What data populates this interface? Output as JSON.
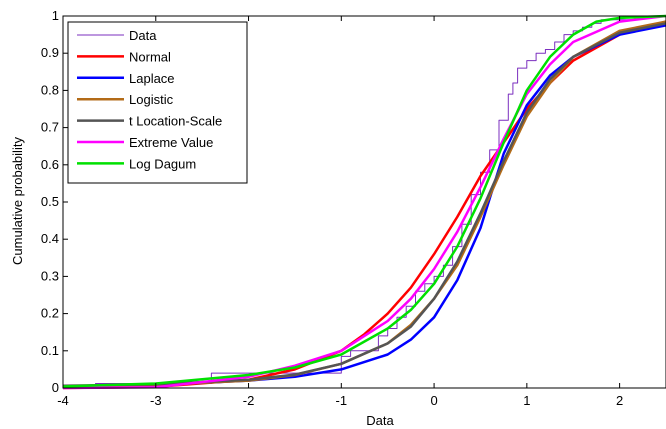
{
  "chart_data": {
    "type": "line",
    "title": "",
    "xlabel": "Data",
    "ylabel": "Cumulative probability",
    "xlim": [
      -4,
      2.5
    ],
    "ylim": [
      0,
      1
    ],
    "xticks": [
      -4,
      -3,
      -2,
      -1,
      0,
      1,
      2
    ],
    "yticks": [
      0,
      0.1,
      0.2,
      0.3,
      0.4,
      0.5,
      0.6,
      0.7,
      0.8,
      0.9,
      1
    ],
    "xtick_labels": [
      "-4",
      "-3",
      "-2",
      "-1",
      "0",
      "1",
      "2"
    ],
    "ytick_labels": [
      "0",
      "0.1",
      "0.2",
      "0.3",
      "0.4",
      "0.5",
      "0.6",
      "0.7",
      "0.8",
      "0.9",
      "1"
    ],
    "grid": false,
    "legend_position": "top-left",
    "series": [
      {
        "name": "Data",
        "color": "#7b2fbf",
        "style": "step",
        "x": [
          -4.0,
          -3.65,
          -2.4,
          -1.0,
          -0.9,
          -0.6,
          -0.5,
          -0.4,
          -0.3,
          -0.2,
          -0.1,
          0.0,
          0.1,
          0.2,
          0.3,
          0.4,
          0.5,
          0.6,
          0.7,
          0.8,
          0.85,
          0.9,
          1.0,
          1.1,
          1.2,
          1.3,
          1.4,
          1.5,
          1.6,
          1.7,
          1.8,
          2.2,
          2.5
        ],
        "y": [
          0.0,
          0.012,
          0.04,
          0.085,
          0.1,
          0.14,
          0.16,
          0.19,
          0.22,
          0.26,
          0.28,
          0.3,
          0.33,
          0.38,
          0.44,
          0.52,
          0.58,
          0.64,
          0.72,
          0.79,
          0.82,
          0.86,
          0.88,
          0.9,
          0.91,
          0.93,
          0.95,
          0.96,
          0.97,
          0.98,
          0.99,
          1.0,
          1.0
        ]
      },
      {
        "name": "Normal",
        "color": "#ff0000",
        "x": [
          -4.0,
          -3.0,
          -2.0,
          -1.5,
          -1.0,
          -0.75,
          -0.5,
          -0.25,
          0.0,
          0.25,
          0.5,
          0.75,
          1.0,
          1.25,
          1.5,
          2.0,
          2.5
        ],
        "y": [
          0.0,
          0.003,
          0.022,
          0.05,
          0.1,
          0.145,
          0.2,
          0.27,
          0.36,
          0.46,
          0.57,
          0.66,
          0.75,
          0.82,
          0.88,
          0.95,
          0.985
        ]
      },
      {
        "name": "Laplace",
        "color": "#0000ff",
        "x": [
          -4.0,
          -3.0,
          -2.0,
          -1.5,
          -1.0,
          -0.5,
          -0.25,
          0.0,
          0.25,
          0.5,
          0.65,
          0.75,
          1.0,
          1.25,
          1.5,
          2.0,
          2.5
        ],
        "y": [
          0.005,
          0.008,
          0.02,
          0.03,
          0.05,
          0.09,
          0.13,
          0.19,
          0.29,
          0.43,
          0.55,
          0.63,
          0.76,
          0.84,
          0.89,
          0.95,
          0.975
        ]
      },
      {
        "name": "Logistic",
        "color": "#b36b18",
        "x": [
          -4.0,
          -3.0,
          -2.0,
          -1.5,
          -1.0,
          -0.5,
          -0.25,
          0.0,
          0.25,
          0.5,
          0.75,
          1.0,
          1.25,
          1.5,
          2.0,
          2.5
        ],
        "y": [
          0.003,
          0.008,
          0.02,
          0.035,
          0.065,
          0.12,
          0.17,
          0.24,
          0.33,
          0.46,
          0.6,
          0.73,
          0.82,
          0.89,
          0.96,
          0.985
        ]
      },
      {
        "name": "t Location-Scale",
        "color": "#555555",
        "x": [
          -4.0,
          -3.0,
          -2.0,
          -1.5,
          -1.0,
          -0.5,
          -0.25,
          0.0,
          0.25,
          0.5,
          0.75,
          1.0,
          1.25,
          1.5,
          2.0,
          2.5
        ],
        "y": [
          0.006,
          0.01,
          0.022,
          0.036,
          0.065,
          0.12,
          0.165,
          0.24,
          0.34,
          0.47,
          0.61,
          0.74,
          0.83,
          0.89,
          0.955,
          0.98
        ]
      },
      {
        "name": "Extreme Value",
        "color": "#ff00ff",
        "x": [
          -4.0,
          -3.0,
          -2.0,
          -1.5,
          -1.0,
          -0.5,
          -0.25,
          0.0,
          0.25,
          0.5,
          0.75,
          1.0,
          1.25,
          1.5,
          2.0,
          2.5
        ],
        "y": [
          0.0,
          0.002,
          0.03,
          0.06,
          0.1,
          0.18,
          0.24,
          0.32,
          0.42,
          0.54,
          0.67,
          0.79,
          0.87,
          0.93,
          0.985,
          1.0
        ]
      },
      {
        "name": "Log Dagum",
        "color": "#00e000",
        "x": [
          -4.0,
          -3.0,
          -2.0,
          -1.5,
          -1.0,
          -0.5,
          -0.25,
          0.0,
          0.25,
          0.5,
          0.75,
          1.0,
          1.25,
          1.5,
          1.75,
          2.0,
          2.5
        ],
        "y": [
          0.004,
          0.012,
          0.035,
          0.055,
          0.09,
          0.16,
          0.21,
          0.28,
          0.38,
          0.51,
          0.66,
          0.8,
          0.89,
          0.95,
          0.985,
          0.995,
          1.0
        ]
      }
    ]
  }
}
